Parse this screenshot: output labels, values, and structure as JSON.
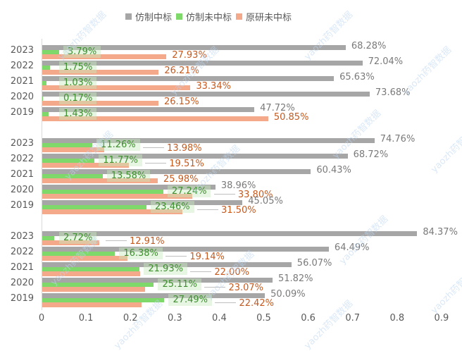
{
  "chart_data": {
    "type": "bar",
    "orientation": "horizontal",
    "title": "",
    "xlabel": "",
    "ylabel": "",
    "xlim": [
      0,
      0.9
    ],
    "x_ticks": [
      "0",
      "0.1",
      "0.2",
      "0.3",
      "0.4",
      "0.5",
      "0.6",
      "0.7",
      "0.8",
      "0.9"
    ],
    "legend": [
      "仿制中标",
      "仿制未中标",
      "原研未中标"
    ],
    "legend_position": "top",
    "grid": false,
    "colors": {
      "仿制中标": "#a6a6a6",
      "仿制未中标": "#7fd86a",
      "原研未中标": "#f4a98a"
    },
    "groups": [
      {
        "categories": [
          "2023",
          "2022",
          "2021",
          "2020",
          "2019"
        ],
        "series": [
          {
            "name": "仿制中标",
            "values": [
              0.6828,
              0.7204,
              0.6563,
              0.7368,
              0.4772
            ],
            "labels": [
              "68.28%",
              "72.04%",
              "65.63%",
              "73.68%",
              "47.72%"
            ]
          },
          {
            "name": "仿制未中标",
            "values": [
              0.0379,
              0.0175,
              0.0103,
              0.0017,
              0.0143
            ],
            "labels": [
              "3.79%",
              "1.75%",
              "1.03%",
              "0.17%",
              "1.43%"
            ]
          },
          {
            "name": "原研未中标",
            "values": [
              0.2793,
              0.2621,
              0.3334,
              0.2615,
              0.5085
            ],
            "labels": [
              "27.93%",
              "26.21%",
              "33.34%",
              "26.15%",
              "50.85%"
            ]
          }
        ]
      },
      {
        "categories": [
          "2023",
          "2022",
          "2021",
          "2020",
          "2019"
        ],
        "series": [
          {
            "name": "仿制中标",
            "values": [
              0.7476,
              0.6872,
              0.6043,
              0.3896,
              0.4505
            ],
            "labels": [
              "74.76%",
              "68.72%",
              "60.43%",
              "38.96%",
              "45.05%"
            ]
          },
          {
            "name": "仿制未中标",
            "values": [
              0.1126,
              0.1177,
              0.1358,
              0.2724,
              0.2346
            ],
            "labels": [
              "11.26%",
              "11.77%",
              "13.58%",
              "27.24%",
              "23.46%"
            ]
          },
          {
            "name": "原研未中标",
            "values": [
              0.1398,
              0.1951,
              0.2598,
              0.338,
              0.315
            ],
            "labels": [
              "13.98%",
              "19.51%",
              "25.98%",
              "33.80%",
              "31.50%"
            ]
          }
        ]
      },
      {
        "categories": [
          "2023",
          "2022",
          "2021",
          "2020",
          "2019"
        ],
        "series": [
          {
            "name": "仿制中标",
            "values": [
              0.8437,
              0.6449,
              0.5607,
              0.5182,
              0.5009
            ],
            "labels": [
              "84.37%",
              "64.49%",
              "56.07%",
              "51.82%",
              "50.09%"
            ]
          },
          {
            "name": "仿制未中标",
            "values": [
              0.0272,
              0.1638,
              0.2193,
              0.2511,
              0.2749
            ],
            "labels": [
              "2.72%",
              "16.38%",
              "21.93%",
              "25.11%",
              "27.49%"
            ]
          },
          {
            "name": "原研未中标",
            "values": [
              0.1291,
              0.1914,
              0.22,
              0.2307,
              0.2242
            ],
            "labels": [
              "12.91%",
              "19.14%",
              "22.00%",
              "23.07%",
              "22.42%"
            ]
          }
        ]
      }
    ]
  },
  "legend": {
    "items": [
      {
        "label": "仿制中标",
        "color": "#a6a6a6"
      },
      {
        "label": "仿制未中标",
        "color": "#7fd86a"
      },
      {
        "label": "原研未中标",
        "color": "#f4a98a"
      }
    ]
  },
  "watermark": "yaozh药智数据"
}
